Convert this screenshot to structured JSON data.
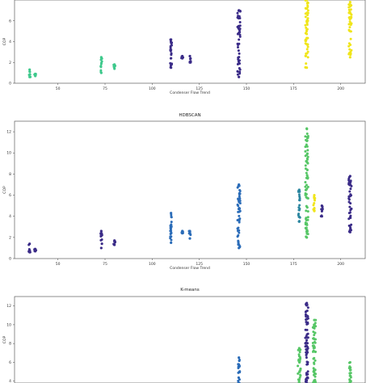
{
  "chart_data": [
    {
      "type": "scatter",
      "title": "",
      "xlabel": "Condenser Flow Trend",
      "ylabel": "COP",
      "xlim": [
        27,
        213
      ],
      "ylim": [
        0,
        8
      ],
      "xticks": [
        50,
        75,
        100,
        125,
        150,
        175,
        200
      ],
      "yticks": [
        0,
        2,
        4,
        6
      ],
      "grid": false,
      "clusters": [
        {
          "color": "#3ec98c",
          "x": 35,
          "ymin": 0.6,
          "ymax": 1.3
        },
        {
          "color": "#3ec98c",
          "x": 38,
          "ymin": 0.7,
          "ymax": 0.9
        },
        {
          "color": "#3ec98c",
          "x": 73,
          "ymin": 1.0,
          "ymax": 2.5
        },
        {
          "color": "#3ec98c",
          "x": 80,
          "ymin": 1.4,
          "ymax": 1.8
        },
        {
          "color": "#3b2c88",
          "x": 110,
          "ymin": 1.5,
          "ymax": 4.2
        },
        {
          "color": "#3b2c88",
          "x": 116,
          "ymin": 2.4,
          "ymax": 2.6
        },
        {
          "color": "#3b2c88",
          "x": 120,
          "ymin": 2.0,
          "ymax": 2.6
        },
        {
          "color": "#3b2c88",
          "x": 146,
          "ymin": 0.6,
          "ymax": 7.0
        },
        {
          "color": "#f0e51a",
          "x": 182,
          "ymin": 1.5,
          "ymax": 8.0
        },
        {
          "color": "#f0e51a",
          "x": 205,
          "ymin": 2.5,
          "ymax": 7.8
        }
      ]
    },
    {
      "type": "scatter",
      "title": "HDBSCAN",
      "xlabel": "Condenser Flow Trend",
      "ylabel": "COP",
      "xlim": [
        27,
        213
      ],
      "ylim": [
        0,
        13
      ],
      "xticks": [
        50,
        75,
        100,
        125,
        150,
        175,
        200
      ],
      "yticks": [
        0,
        2,
        4,
        6,
        8,
        10,
        12
      ],
      "grid": false,
      "clusters": [
        {
          "color": "#3b2c88",
          "x": 35,
          "ymin": 0.6,
          "ymax": 1.4
        },
        {
          "color": "#3b2c88",
          "x": 38,
          "ymin": 0.7,
          "ymax": 0.9
        },
        {
          "color": "#3b2c88",
          "x": 73,
          "ymin": 1.0,
          "ymax": 2.6
        },
        {
          "color": "#3b2c88",
          "x": 80,
          "ymin": 1.3,
          "ymax": 1.7
        },
        {
          "color": "#2b6cb8",
          "x": 110,
          "ymin": 1.5,
          "ymax": 4.3
        },
        {
          "color": "#2b6cb8",
          "x": 116,
          "ymin": 2.4,
          "ymax": 2.6
        },
        {
          "color": "#2b6cb8",
          "x": 120,
          "ymin": 1.9,
          "ymax": 2.6
        },
        {
          "color": "#2b6cb8",
          "x": 146,
          "ymin": 1.0,
          "ymax": 7.0
        },
        {
          "color": "#56c666",
          "x": 182,
          "ymin": 2.0,
          "ymax": 12.3
        },
        {
          "color": "#2c86a0",
          "x": 178,
          "ymin": 3.5,
          "ymax": 6.5
        },
        {
          "color": "#f0e51a",
          "x": 186,
          "ymin": 4.5,
          "ymax": 6.0
        },
        {
          "color": "#3b2c88",
          "x": 190,
          "ymin": 4.0,
          "ymax": 5.0
        },
        {
          "color": "#3b2c88",
          "x": 205,
          "ymin": 2.5,
          "ymax": 7.8
        }
      ]
    },
    {
      "type": "scatter",
      "title": "K-means",
      "xlabel": "",
      "ylabel": "COP",
      "xlim": [
        27,
        213
      ],
      "ylim": [
        3.8,
        13
      ],
      "xticks": [],
      "yticks": [
        4,
        6,
        8,
        10,
        12
      ],
      "grid": false,
      "clusters": [
        {
          "color": "#2b6cb8",
          "x": 146,
          "ymin": 3.8,
          "ymax": 6.5
        },
        {
          "color": "#56c666",
          "x": 178,
          "ymin": 3.8,
          "ymax": 7.5
        },
        {
          "color": "#3b2c88",
          "x": 182,
          "ymin": 3.8,
          "ymax": 12.3
        },
        {
          "color": "#56c666",
          "x": 186,
          "ymin": 3.8,
          "ymax": 10.5
        },
        {
          "color": "#56c666",
          "x": 205,
          "ymin": 3.8,
          "ymax": 6.0
        }
      ]
    }
  ]
}
